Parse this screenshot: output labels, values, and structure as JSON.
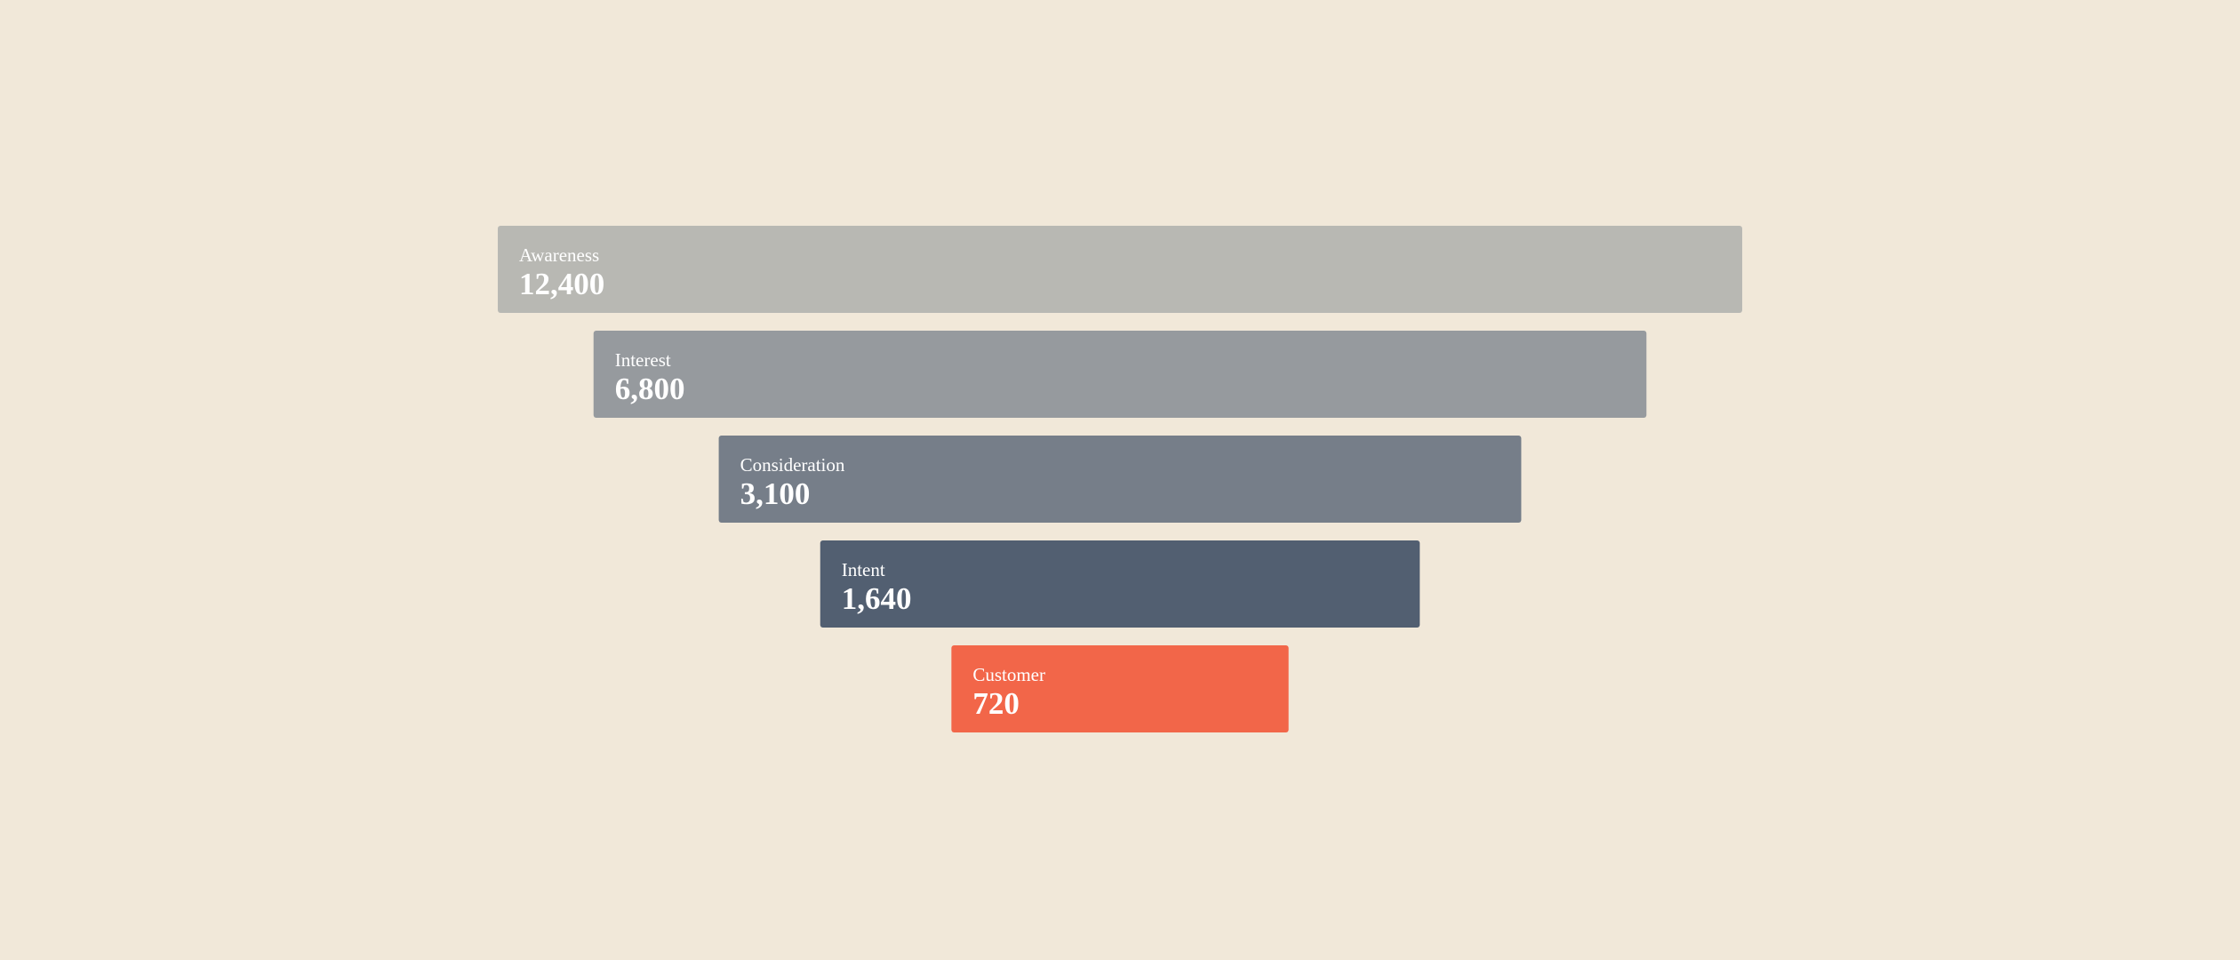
{
  "chart_data": {
    "type": "funnel",
    "categories": [
      "Awareness",
      "Interest",
      "Consideration",
      "Intent",
      "Customer"
    ],
    "values": [
      12400,
      6800,
      3100,
      1640,
      720
    ],
    "value_labels": [
      "12,400",
      "6,800",
      "3,100",
      "1,640",
      "720"
    ],
    "colors": [
      "#b8b8b3",
      "#969a9e",
      "#767e89",
      "#525f71",
      "#f26649"
    ]
  }
}
